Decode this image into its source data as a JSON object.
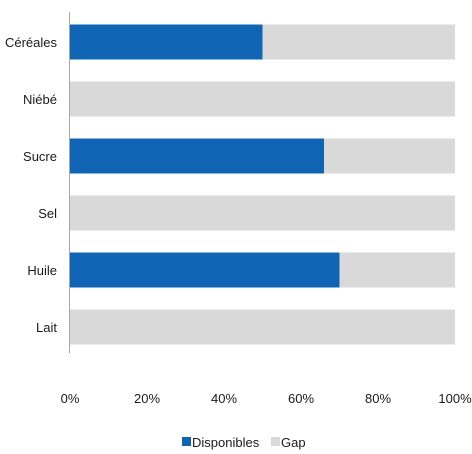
{
  "chart_data": {
    "type": "bar",
    "orientation": "horizontal",
    "stacked": true,
    "percent_stacked": true,
    "categories": [
      "Céréales",
      "Niébé",
      "Sucre",
      "Sel",
      "Huile",
      "Lait"
    ],
    "series": [
      {
        "name": "Disponibles",
        "values": [
          50,
          0,
          66,
          0,
          70,
          0
        ],
        "color": "#0f65b4"
      },
      {
        "name": "Gap",
        "values": [
          50,
          100,
          34,
          100,
          30,
          100
        ],
        "color": "#d9d9d9"
      }
    ],
    "x_ticks": [
      "0%",
      "20%",
      "40%",
      "60%",
      "80%",
      "100%"
    ],
    "xlim": [
      0,
      100
    ],
    "grid": false,
    "legend_position": "bottom"
  }
}
